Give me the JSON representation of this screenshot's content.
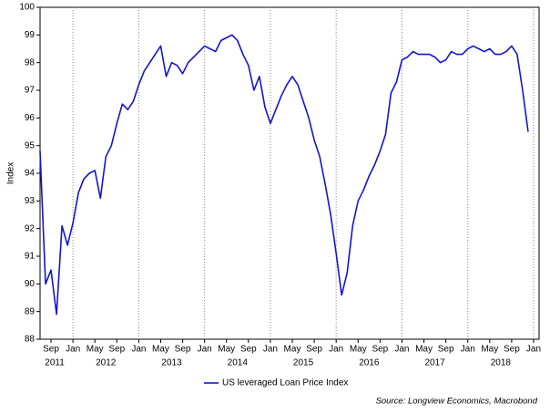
{
  "chart_data": {
    "type": "line",
    "y_label": "Index",
    "source": "Source: Longview Economics, Macrobond",
    "grid": true,
    "xlim": [
      "2011-07",
      "2019-02"
    ],
    "ylim": [
      88,
      100
    ],
    "yticks": [
      88,
      89,
      90,
      91,
      92,
      93,
      94,
      95,
      96,
      97,
      98,
      99,
      100
    ],
    "xticks": [
      {
        "value": "2011-09",
        "label": "Sep"
      },
      {
        "value": "2012-01",
        "label": "Jan"
      },
      {
        "value": "2012-05",
        "label": "May"
      },
      {
        "value": "2012-09",
        "label": "Sep"
      },
      {
        "value": "2013-01",
        "label": "Jan"
      },
      {
        "value": "2013-05",
        "label": "May"
      },
      {
        "value": "2013-09",
        "label": "Sep"
      },
      {
        "value": "2014-01",
        "label": "Jan"
      },
      {
        "value": "2014-05",
        "label": "May"
      },
      {
        "value": "2014-09",
        "label": "Sep"
      },
      {
        "value": "2015-01",
        "label": "Jan"
      },
      {
        "value": "2015-05",
        "label": "May"
      },
      {
        "value": "2015-09",
        "label": "Sep"
      },
      {
        "value": "2016-01",
        "label": "Jan"
      },
      {
        "value": "2016-05",
        "label": "May"
      },
      {
        "value": "2016-09",
        "label": "Sep"
      },
      {
        "value": "2017-01",
        "label": "Jan"
      },
      {
        "value": "2017-05",
        "label": "May"
      },
      {
        "value": "2017-09",
        "label": "Sep"
      },
      {
        "value": "2018-01",
        "label": "Jan"
      },
      {
        "value": "2018-05",
        "label": "May"
      },
      {
        "value": "2018-09",
        "label": "Sep"
      },
      {
        "value": "2019-01",
        "label": "Jan"
      }
    ],
    "year_labels": [
      "2011",
      "2012",
      "2013",
      "2014",
      "2015",
      "2016",
      "2017",
      "2018"
    ],
    "x": [
      "2011-07",
      "2011-08",
      "2011-09",
      "2011-10",
      "2011-11",
      "2011-12",
      "2012-01",
      "2012-02",
      "2012-03",
      "2012-04",
      "2012-05",
      "2012-06",
      "2012-07",
      "2012-08",
      "2012-09",
      "2012-10",
      "2012-11",
      "2012-12",
      "2013-01",
      "2013-02",
      "2013-03",
      "2013-04",
      "2013-05",
      "2013-06",
      "2013-07",
      "2013-08",
      "2013-09",
      "2013-10",
      "2013-11",
      "2013-12",
      "2014-01",
      "2014-02",
      "2014-03",
      "2014-04",
      "2014-05",
      "2014-06",
      "2014-07",
      "2014-08",
      "2014-09",
      "2014-10",
      "2014-11",
      "2014-12",
      "2015-01",
      "2015-02",
      "2015-03",
      "2015-04",
      "2015-05",
      "2015-06",
      "2015-07",
      "2015-08",
      "2015-09",
      "2015-10",
      "2015-11",
      "2015-12",
      "2016-01",
      "2016-02",
      "2016-03",
      "2016-04",
      "2016-05",
      "2016-06",
      "2016-07",
      "2016-08",
      "2016-09",
      "2016-10",
      "2016-11",
      "2016-12",
      "2017-01",
      "2017-02",
      "2017-03",
      "2017-04",
      "2017-05",
      "2017-06",
      "2017-07",
      "2017-08",
      "2017-09",
      "2017-10",
      "2017-11",
      "2017-12",
      "2018-01",
      "2018-02",
      "2018-03",
      "2018-04",
      "2018-05",
      "2018-06",
      "2018-07",
      "2018-08",
      "2018-09",
      "2018-10",
      "2018-11",
      "2018-12"
    ],
    "series": [
      {
        "name": "US leveraged Loan Price Index",
        "color": "#1414d2",
        "values": [
          94.8,
          90.0,
          90.5,
          88.9,
          92.1,
          91.4,
          92.2,
          93.3,
          93.8,
          94.0,
          94.1,
          93.1,
          94.6,
          95.0,
          95.8,
          96.5,
          96.3,
          96.6,
          97.2,
          97.7,
          98.0,
          98.3,
          98.6,
          97.5,
          98.0,
          97.9,
          97.6,
          98.0,
          98.2,
          98.4,
          98.6,
          98.5,
          98.4,
          98.8,
          98.9,
          99.0,
          98.8,
          98.3,
          97.9,
          97.0,
          97.5,
          96.4,
          95.8,
          96.3,
          96.8,
          97.2,
          97.5,
          97.2,
          96.6,
          96.0,
          95.2,
          94.6,
          93.6,
          92.5,
          91.1,
          89.6,
          90.4,
          92.1,
          93.0,
          93.4,
          93.9,
          94.3,
          94.8,
          95.4,
          96.9,
          97.3,
          98.1,
          98.2,
          98.4,
          98.3,
          98.3,
          98.3,
          98.2,
          98.0,
          98.1,
          98.4,
          98.3,
          98.3,
          98.5,
          98.6,
          98.5,
          98.4,
          98.5,
          98.3,
          98.3,
          98.4,
          98.6,
          98.3,
          97.0,
          95.5
        ]
      }
    ]
  }
}
